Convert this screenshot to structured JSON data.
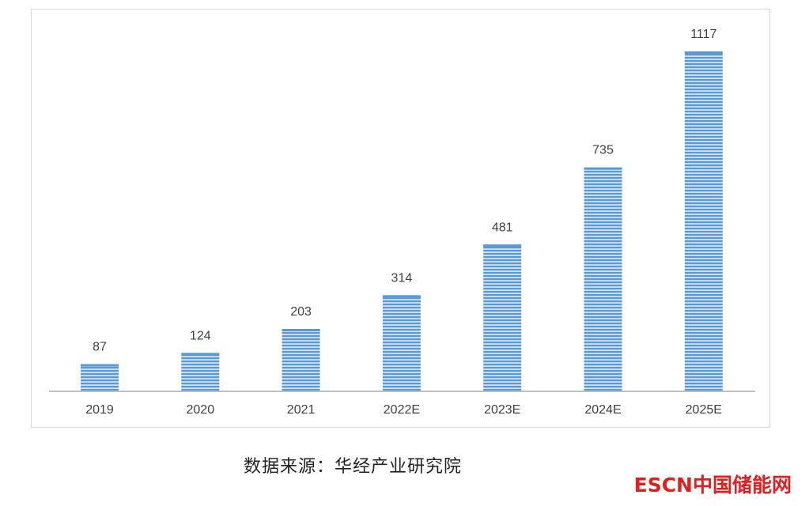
{
  "chart_data": {
    "type": "bar",
    "categories": [
      "2019",
      "2020",
      "2021",
      "2022E",
      "2023E",
      "2024E",
      "2025E"
    ],
    "values": [
      87,
      124,
      203,
      314,
      481,
      735,
      1117
    ],
    "data_labels": [
      "87",
      "124",
      "203",
      "314",
      "481",
      "735",
      "1117"
    ],
    "ylim": [
      0,
      1117
    ],
    "grid": false,
    "legend": "none",
    "bar_color": "#5b9bd5",
    "bar_stripe_color": "#cfe0f3"
  },
  "footer": {
    "source": "数据来源：华经产业研究院"
  },
  "logo": {
    "brand_en": "ESCN",
    "brand_cn": "中国储能网",
    "color": "#e02020"
  }
}
